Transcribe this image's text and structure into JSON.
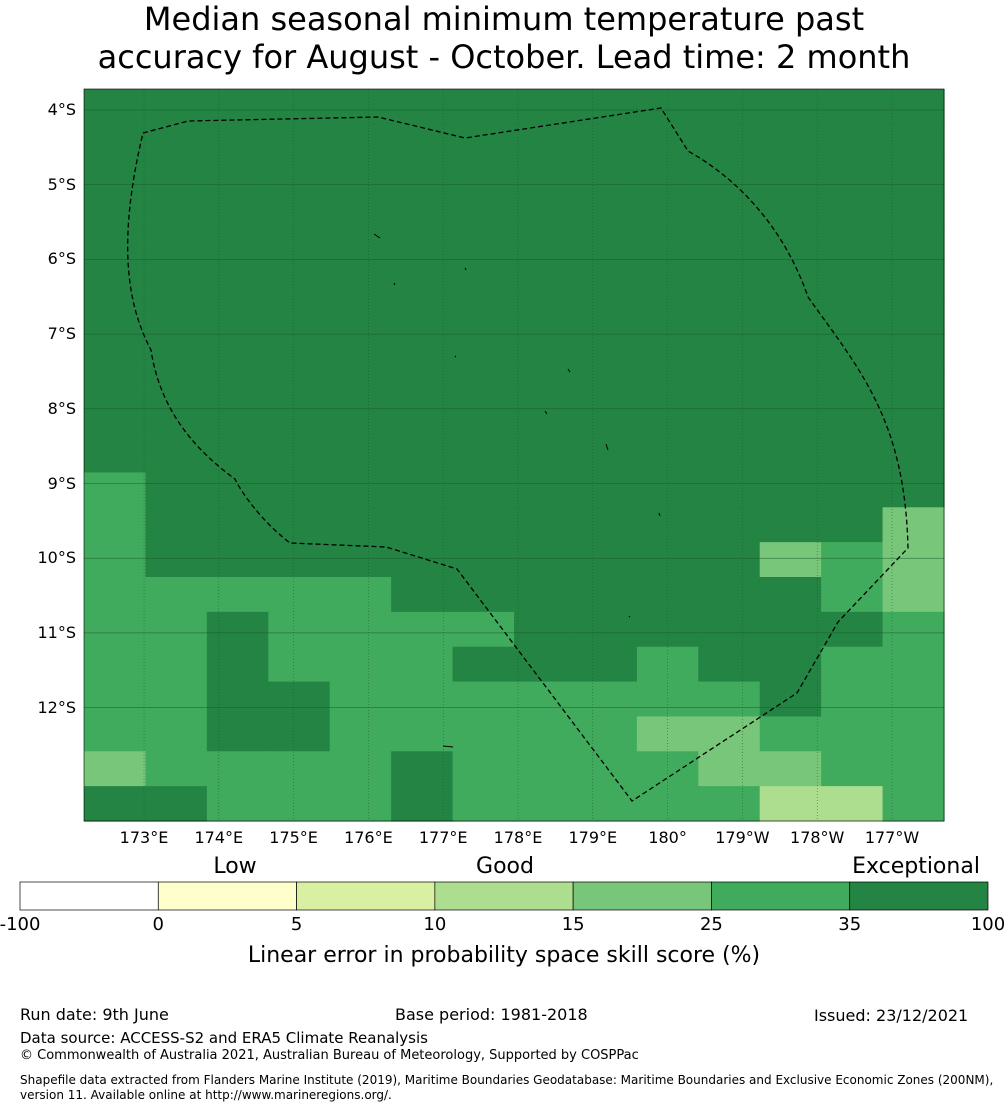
{
  "title": {
    "line1": "Median seasonal minimum temperature past",
    "line2": "accuracy for August - October. Lead time: 2 month"
  },
  "map": {
    "lat_labels": [
      "4°S",
      "5°S",
      "6°S",
      "7°S",
      "8°S",
      "9°S",
      "10°S",
      "11°S",
      "12°S"
    ],
    "lon_labels": [
      "173°E",
      "174°E",
      "175°E",
      "176°E",
      "177°E",
      "178°E",
      "179°E",
      "180°",
      "179°W",
      "178°W",
      "177°W"
    ],
    "category_colors": [
      "#ffffff",
      "#ffffcc",
      "#d9f0a3",
      "#addd8e",
      "#78c679",
      "#41ab5d",
      "#238443"
    ],
    "grid_color": "#1a5c2c",
    "boundary_style": "dashed",
    "grid": [
      "66666666666666",
      "66666666666666",
      "66666666666666",
      "66666666666666",
      "66666666666666",
      "66666666666666",
      "66666666666666",
      "66666666666666",
      "66666666666666",
      "66666666666666",
      "66666666666666",
      "56666666666666",
      "56666666666664",
      "56666666666454",
      "55555666666654",
      "55655556666665",
      "55655566656655",
      "55665555555655",
      "55665555544555",
      "45555655554455",
      "66555655555335"
    ]
  },
  "colorbar": {
    "categories": [
      "Low",
      "Good",
      "Exceptional"
    ],
    "ticks": [
      "-100",
      "0",
      "5",
      "10",
      "15",
      "25",
      "35",
      "100"
    ],
    "colors": [
      "#ffffff",
      "#ffffcc",
      "#d9f0a3",
      "#addd8e",
      "#78c679",
      "#41ab5d",
      "#238443"
    ],
    "title": "Linear error in probability space skill score (%)"
  },
  "footer": {
    "run_date": "Run date: 9th June",
    "base_period": "Base period: 1981-2018",
    "issued": "Issued: 23/12/2021",
    "data_source": "Data source: ACCESS-S2 and ERA5 Climate Reanalysis",
    "copyright": "© Commonwealth of Australia 2021, Australian Bureau of Meteorology, Supported by COSPPac",
    "shapefile": "Shapefile data extracted from Flanders Marine Institute (2019), Maritime Boundaries Geodatabase: Maritime Boundaries and Exclusive Economic Zones (200NM), version 11. Available online at http://www.marineregions.org/."
  }
}
